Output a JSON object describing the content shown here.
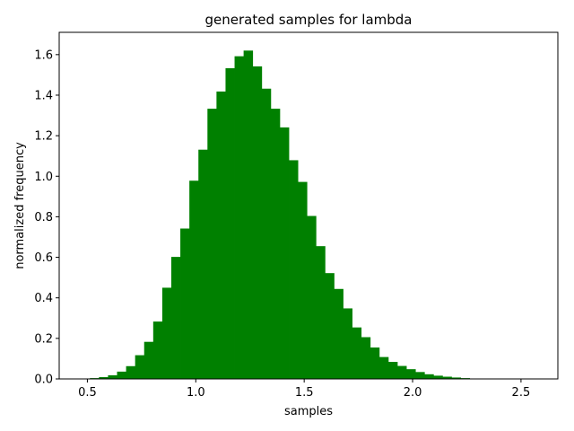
{
  "chart_data": {
    "type": "bar",
    "title": "generated samples for lambda",
    "xlabel": "samples",
    "ylabel": "normalized frequency",
    "xlim": [
      0.37,
      2.67
    ],
    "ylim": [
      0.0,
      1.71
    ],
    "xticks": [
      0.5,
      1.0,
      1.5,
      2.0,
      2.5
    ],
    "xtick_labels": [
      "0.5",
      "1.0",
      "1.5",
      "2.0",
      "2.5"
    ],
    "yticks": [
      0.0,
      0.2,
      0.4,
      0.6,
      0.8,
      1.0,
      1.2,
      1.4,
      1.6
    ],
    "ytick_labels": [
      "0.0",
      "0.2",
      "0.4",
      "0.6",
      "0.8",
      "1.0",
      "1.2",
      "1.4",
      "1.6"
    ],
    "grid": false,
    "bar_color": "#008000",
    "bin_start": 0.47,
    "bin_width": 0.0417,
    "values": [
      0.002,
      0.004,
      0.009,
      0.018,
      0.036,
      0.063,
      0.117,
      0.183,
      0.283,
      0.45,
      0.602,
      0.742,
      0.978,
      1.131,
      1.333,
      1.418,
      1.533,
      1.592,
      1.62,
      1.542,
      1.432,
      1.333,
      1.241,
      1.079,
      0.972,
      0.804,
      0.655,
      0.522,
      0.444,
      0.348,
      0.254,
      0.206,
      0.155,
      0.108,
      0.084,
      0.064,
      0.048,
      0.034,
      0.023,
      0.016,
      0.011,
      0.007,
      0.004,
      0.002,
      0.001,
      0.0005,
      0.0003,
      0.0002,
      0.002,
      0.0004
    ]
  }
}
